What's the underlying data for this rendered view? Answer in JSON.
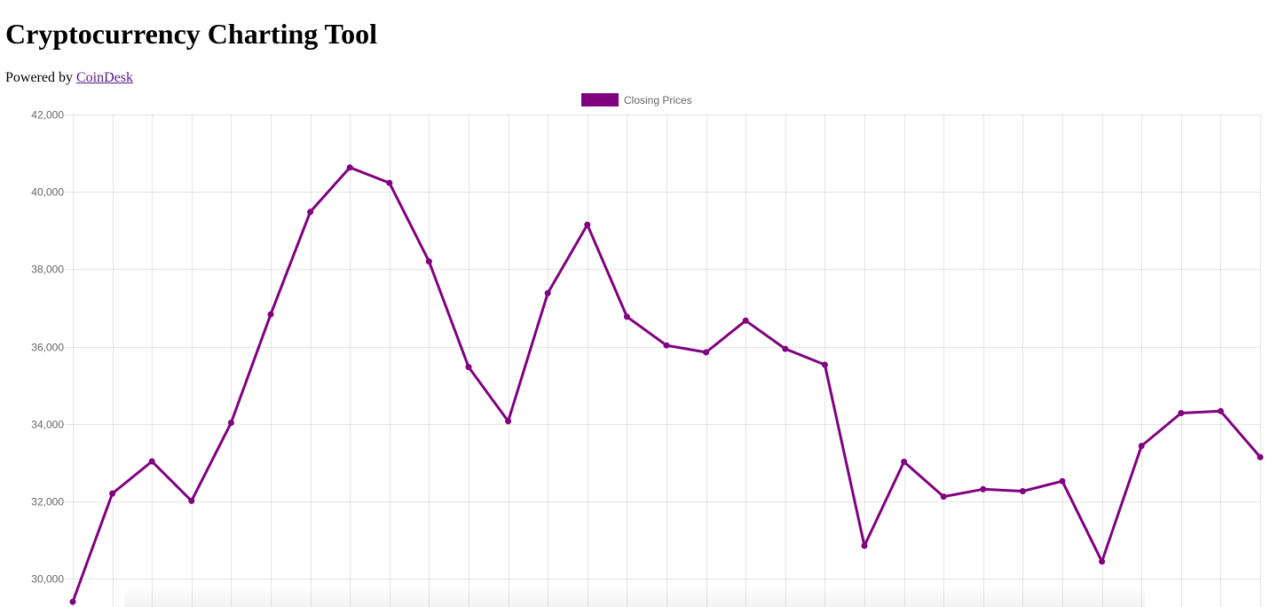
{
  "header": {
    "title": "Cryptocurrency Charting Tool",
    "powered_prefix": "Powered by ",
    "powered_link": "CoinDesk"
  },
  "chart_data": {
    "type": "line",
    "title": "",
    "xlabel": "",
    "ylabel": "",
    "ylim": [
      29300,
      42000
    ],
    "y_ticks": [
      30000,
      32000,
      34000,
      36000,
      38000,
      40000,
      42000
    ],
    "y_tick_labels": [
      "30,000",
      "32,000",
      "34,000",
      "36,000",
      "38,000",
      "40,000",
      "42,000"
    ],
    "grid": true,
    "legend_position": "top-center",
    "series": [
      {
        "name": "Closing Prices",
        "color": "#800080",
        "values": [
          29400,
          32200,
          33030,
          32010,
          34030,
          36830,
          39480,
          40630,
          40230,
          38200,
          35470,
          34070,
          37380,
          39150,
          36770,
          36030,
          35850,
          36670,
          35940,
          35530,
          30850,
          33020,
          32120,
          32310,
          32260,
          32520,
          30440,
          33430,
          34280,
          34330,
          33140
        ]
      }
    ]
  }
}
